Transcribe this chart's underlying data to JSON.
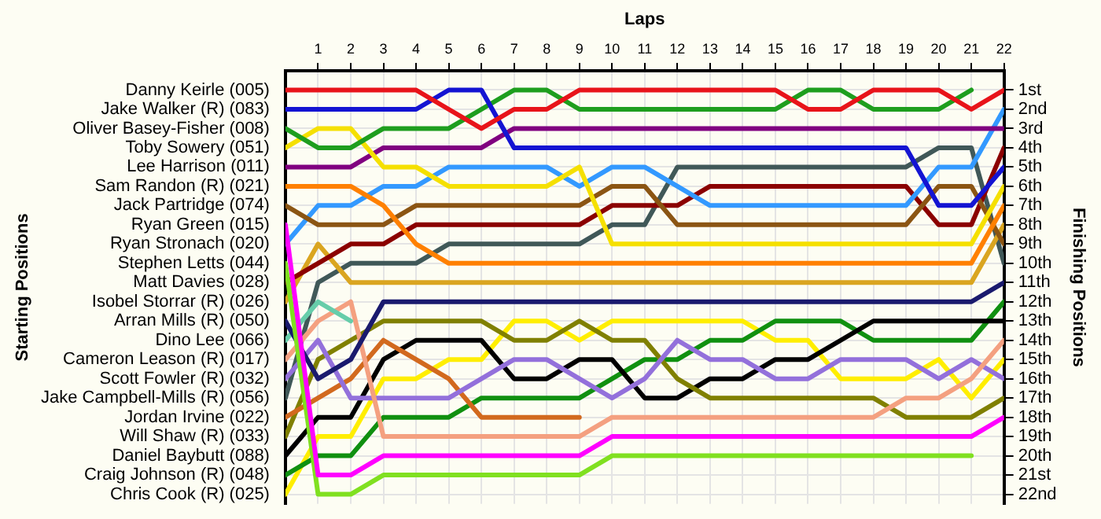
{
  "chart_data": {
    "type": "line",
    "xlabel": "Laps",
    "ylabel": "Finishing Positions",
    "x": [
      0,
      1,
      2,
      3,
      4,
      5,
      6,
      7,
      8,
      9,
      10,
      11,
      12,
      13,
      14,
      15,
      16,
      17,
      18,
      19,
      20,
      21,
      22
    ],
    "xlim": [
      0,
      22
    ],
    "xticks": [
      1,
      2,
      3,
      4,
      5,
      6,
      7,
      8,
      9,
      10,
      11,
      12,
      13,
      14,
      15,
      16,
      17,
      18,
      19,
      20,
      21,
      22
    ],
    "ylim": [
      22.5,
      0
    ],
    "yticks": [
      {
        "value": 1,
        "label": "1st"
      },
      {
        "value": 2,
        "label": "2nd"
      },
      {
        "value": 3,
        "label": "3rd"
      },
      {
        "value": 4,
        "label": "4th"
      },
      {
        "value": 5,
        "label": "5th"
      },
      {
        "value": 6,
        "label": "6th"
      },
      {
        "value": 7,
        "label": "7th"
      },
      {
        "value": 8,
        "label": "8th"
      },
      {
        "value": 9,
        "label": "9th"
      },
      {
        "value": 10,
        "label": "10th"
      },
      {
        "value": 11,
        "label": "11th"
      },
      {
        "value": 12,
        "label": "12th"
      },
      {
        "value": 13,
        "label": "13th"
      },
      {
        "value": 14,
        "label": "14th"
      },
      {
        "value": 15,
        "label": "15th"
      },
      {
        "value": 16,
        "label": "16th"
      },
      {
        "value": 17,
        "label": "17th"
      },
      {
        "value": 18,
        "label": "18th"
      },
      {
        "value": 19,
        "label": "19th"
      },
      {
        "value": 20,
        "label": "20th"
      },
      {
        "value": 21,
        "label": "21st"
      },
      {
        "value": 22,
        "label": "22nd"
      }
    ],
    "annotations": [
      "Starting Positions"
    ],
    "grid": true,
    "legend": false,
    "marker": "none",
    "line_style": "solid",
    "series": [
      {
        "name": "Danny Keirle (005)",
        "color": "#e8141a",
        "values": [
          1,
          1,
          1,
          1,
          1,
          2,
          3,
          2,
          2,
          1,
          1,
          1,
          1,
          1,
          1,
          1,
          2,
          2,
          1,
          1,
          1,
          2,
          1
        ]
      },
      {
        "name": "Jake Walker (R) (083)",
        "color": "#1414d2",
        "values": [
          2,
          2,
          2,
          2,
          2,
          1,
          1,
          4,
          4,
          4,
          4,
          4,
          4,
          4,
          4,
          4,
          4,
          4,
          4,
          4,
          7,
          7,
          5
        ]
      },
      {
        "name": "Oliver Basey-Fisher (008)",
        "color": "#1e9e1e",
        "values": [
          3,
          4,
          4,
          3,
          3,
          3,
          2,
          1,
          1,
          2,
          2,
          2,
          2,
          2,
          2,
          2,
          1,
          1,
          2,
          2,
          2,
          1,
          null
        ]
      },
      {
        "name": "Toby Sowery (051)",
        "color": "#f5e000",
        "values": [
          4,
          3,
          3,
          5,
          5,
          6,
          6,
          6,
          6,
          5,
          9,
          9,
          9,
          9,
          9,
          9,
          9,
          9,
          9,
          9,
          9,
          9,
          6
        ]
      },
      {
        "name": "Lee Harrison (011)",
        "color": "#800080",
        "values": [
          5,
          5,
          5,
          4,
          4,
          4,
          4,
          3,
          3,
          3,
          3,
          3,
          3,
          3,
          3,
          3,
          3,
          3,
          3,
          3,
          3,
          3,
          3
        ]
      },
      {
        "name": "Sam Randon (R) (021)",
        "color": "#ff8000",
        "values": [
          6,
          6,
          6,
          7,
          9,
          10,
          10,
          10,
          10,
          10,
          10,
          10,
          10,
          10,
          10,
          10,
          10,
          10,
          10,
          10,
          10,
          10,
          7
        ]
      },
      {
        "name": "Jack Partridge (074)",
        "color": "#8b5513",
        "values": [
          7,
          8,
          8,
          8,
          7,
          7,
          7,
          7,
          7,
          7,
          6,
          6,
          8,
          8,
          8,
          8,
          8,
          8,
          8,
          8,
          6,
          6,
          9
        ]
      },
      {
        "name": "Ryan Green (015)",
        "color": "#ff00ff",
        "values": [
          8,
          21,
          21,
          20,
          20,
          20,
          20,
          20,
          20,
          20,
          19,
          19,
          19,
          19,
          19,
          19,
          19,
          19,
          19,
          19,
          19,
          19,
          18
        ]
      },
      {
        "name": "Ryan Stronach (020)",
        "color": "#3399ff",
        "values": [
          9,
          7,
          7,
          6,
          6,
          5,
          5,
          5,
          5,
          6,
          5,
          5,
          6,
          7,
          7,
          7,
          7,
          7,
          7,
          7,
          5,
          5,
          2
        ]
      },
      {
        "name": "Stephen Letts (044)",
        "color": "#80e020",
        "values": [
          10,
          22,
          22,
          21,
          21,
          21,
          21,
          21,
          21,
          21,
          20,
          20,
          20,
          20,
          20,
          20,
          20,
          20,
          20,
          20,
          20,
          20,
          null
        ]
      },
      {
        "name": "Matt Davies (028)",
        "color": "#8b0000",
        "values": [
          11,
          10,
          9,
          9,
          8,
          8,
          8,
          8,
          8,
          8,
          7,
          7,
          7,
          6,
          6,
          6,
          6,
          6,
          6,
          6,
          8,
          8,
          4
        ]
      },
      {
        "name": "Isobel Storrar (R) (026)",
        "color": "#daa520",
        "values": [
          12,
          9,
          11,
          11,
          11,
          11,
          11,
          11,
          11,
          11,
          11,
          11,
          11,
          11,
          11,
          11,
          11,
          11,
          11,
          11,
          11,
          11,
          8
        ]
      },
      {
        "name": "Arran Mills (R) (050)",
        "color": "#1a1a6e",
        "values": [
          13,
          16,
          15,
          12,
          12,
          12,
          12,
          12,
          12,
          12,
          12,
          12,
          12,
          12,
          12,
          12,
          12,
          12,
          12,
          12,
          12,
          12,
          11
        ]
      },
      {
        "name": "Dino Lee (066)",
        "color": "#66cdaa",
        "values": [
          14,
          12,
          13,
          null,
          null,
          null,
          null,
          null,
          null,
          null,
          null,
          null,
          null,
          null,
          null,
          null,
          null,
          null,
          null,
          null,
          null,
          null,
          null
        ]
      },
      {
        "name": "Cameron Leason (R) (017)",
        "color": "#f4a080",
        "values": [
          15,
          13,
          12,
          19,
          19,
          19,
          19,
          19,
          19,
          19,
          18,
          18,
          18,
          18,
          18,
          18,
          18,
          18,
          18,
          17,
          17,
          16,
          14
        ]
      },
      {
        "name": "Scott Fowler (R) (032)",
        "color": "#9370db",
        "values": [
          16,
          14,
          17,
          17,
          17,
          17,
          16,
          15,
          15,
          16,
          17,
          16,
          14,
          15,
          15,
          16,
          16,
          15,
          15,
          15,
          16,
          15,
          16
        ]
      },
      {
        "name": "Jake Campbell-Mills (R) (056)",
        "color": "#405858",
        "values": [
          17,
          11,
          10,
          10,
          10,
          9,
          9,
          9,
          9,
          9,
          8,
          8,
          5,
          5,
          5,
          5,
          5,
          5,
          5,
          5,
          4,
          4,
          10
        ]
      },
      {
        "name": "Jordan Irvine (022)",
        "color": "#d2691e",
        "values": [
          18,
          17,
          16,
          14,
          15,
          16,
          18,
          18,
          18,
          18,
          null,
          null,
          null,
          null,
          null,
          null,
          null,
          null,
          null,
          null,
          null,
          null,
          null
        ]
      },
      {
        "name": "Will Shaw (R) (033)",
        "color": "#808000",
        "values": [
          19,
          15,
          14,
          13,
          13,
          13,
          13,
          14,
          14,
          13,
          14,
          14,
          16,
          17,
          17,
          17,
          17,
          17,
          17,
          18,
          18,
          18,
          17
        ]
      },
      {
        "name": "Daniel Baybutt (088)",
        "color": "#000000",
        "values": [
          20,
          18,
          18,
          15,
          14,
          14,
          14,
          16,
          16,
          15,
          15,
          17,
          17,
          16,
          16,
          15,
          15,
          14,
          13,
          13,
          13,
          13,
          13
        ]
      },
      {
        "name": "Craig Johnson (R) (048)",
        "color": "#109010",
        "values": [
          21,
          20,
          20,
          18,
          18,
          18,
          17,
          17,
          17,
          17,
          16,
          15,
          15,
          14,
          14,
          13,
          13,
          13,
          14,
          14,
          14,
          14,
          12
        ]
      },
      {
        "name": "Chris Cook (R) (025)",
        "color": "#ffee00",
        "values": [
          22,
          19,
          19,
          16,
          16,
          15,
          15,
          13,
          13,
          14,
          13,
          13,
          13,
          13,
          13,
          14,
          14,
          16,
          16,
          16,
          15,
          17,
          15
        ]
      }
    ]
  }
}
